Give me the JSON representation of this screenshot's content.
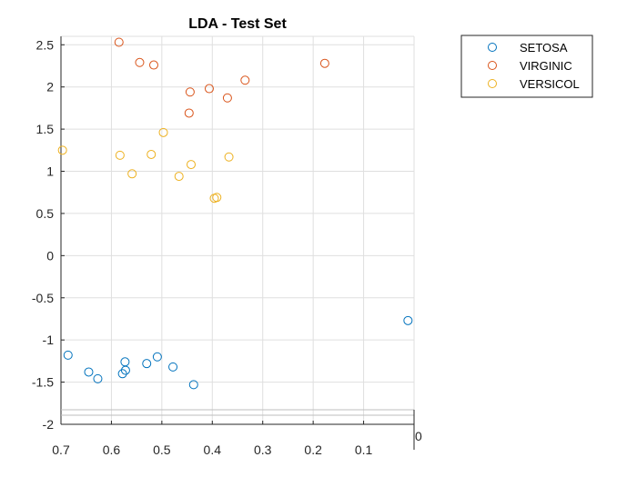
{
  "chart_data": {
    "type": "scatter",
    "title": "LDA - Test Set",
    "xlabel": "",
    "ylabel": "",
    "xlim": [
      0.7,
      0.0
    ],
    "ylim": [
      -2,
      2.6
    ],
    "x_reversed": true,
    "grid": true,
    "legend": "outside-top-right",
    "x_ticks": [
      "0.7",
      "0.6",
      "0.5",
      "0.4",
      "0.3",
      "0.2",
      "0.1"
    ],
    "y_ticks": [
      "-2",
      "-1.5",
      "-1",
      "-0.5",
      "0",
      "0.5",
      "1",
      "1.5",
      "2",
      "2.5"
    ],
    "corner_label": "0",
    "series": [
      {
        "name": "SETOSA",
        "color": "#0072BD",
        "points": [
          [
            0.686,
            -1.18
          ],
          [
            0.645,
            -1.38
          ],
          [
            0.627,
            -1.46
          ],
          [
            0.578,
            -1.4
          ],
          [
            0.573,
            -1.26
          ],
          [
            0.572,
            -1.36
          ],
          [
            0.53,
            -1.28
          ],
          [
            0.509,
            -1.2
          ],
          [
            0.478,
            -1.32
          ],
          [
            0.437,
            -1.53
          ],
          [
            0.012,
            -0.77
          ]
        ]
      },
      {
        "name": "VIRGINIC",
        "color": "#D95319",
        "points": [
          [
            0.585,
            2.53
          ],
          [
            0.544,
            2.29
          ],
          [
            0.516,
            2.26
          ],
          [
            0.444,
            1.94
          ],
          [
            0.446,
            1.69
          ],
          [
            0.406,
            1.98
          ],
          [
            0.37,
            1.87
          ],
          [
            0.335,
            2.08
          ],
          [
            0.177,
            2.28
          ]
        ]
      },
      {
        "name": "VERSICOL",
        "color": "#EDB120",
        "points": [
          [
            0.697,
            1.25
          ],
          [
            0.583,
            1.19
          ],
          [
            0.559,
            0.97
          ],
          [
            0.521,
            1.2
          ],
          [
            0.497,
            1.46
          ],
          [
            0.466,
            0.94
          ],
          [
            0.442,
            1.08
          ],
          [
            0.367,
            1.17
          ],
          [
            0.396,
            0.68
          ],
          [
            0.391,
            0.69
          ]
        ]
      }
    ]
  }
}
